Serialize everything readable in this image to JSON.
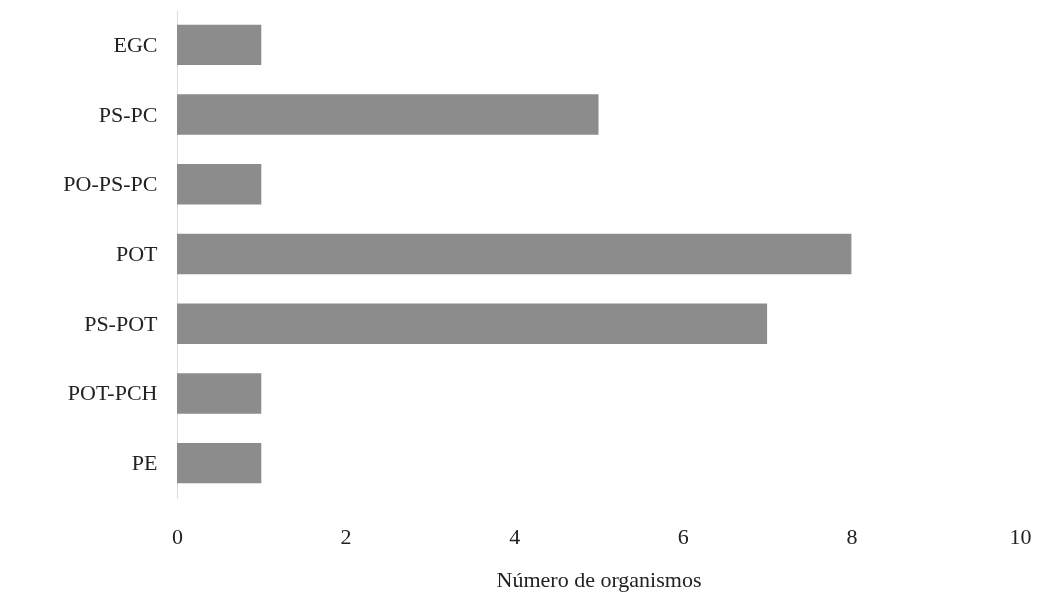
{
  "chart_data": {
    "type": "bar",
    "orientation": "horizontal",
    "xlabel": "Número de organismos",
    "categories": [
      "EGC",
      "PS-PC",
      "PO-PS-PC",
      "POT",
      "PS-POT",
      "POT-PCH",
      "PE"
    ],
    "values": [
      1,
      5,
      1,
      8,
      7,
      1,
      1
    ],
    "color": "#8c8c8c",
    "xlim": [
      0,
      10
    ],
    "xticks": [
      0,
      2,
      4,
      6,
      8,
      10
    ],
    "grid": false
  }
}
